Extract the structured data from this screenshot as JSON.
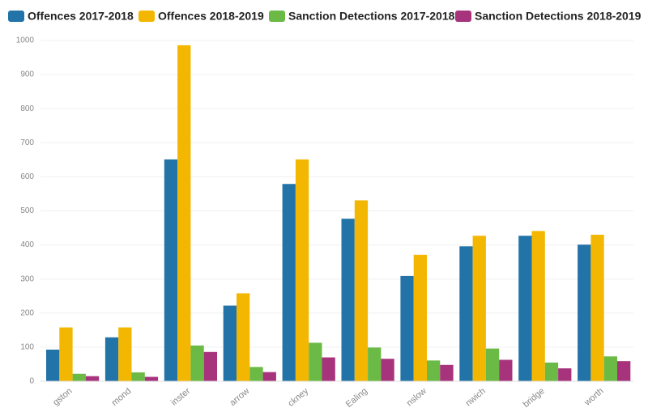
{
  "chart_data": {
    "type": "bar",
    "categories": [
      "gston",
      "mond",
      "inster",
      "arrow",
      "ckney",
      "Ealing",
      "nslow",
      "nwich",
      "bridge",
      "worth"
    ],
    "series": [
      {
        "name": "Offences 2017-2018",
        "color": "#2274a8",
        "values": [
          93,
          129,
          651,
          222,
          579,
          477,
          309,
          396,
          427,
          401
        ]
      },
      {
        "name": "Offences 2018-2019",
        "color": "#f4b701",
        "values": [
          158,
          158,
          986,
          258,
          651,
          531,
          371,
          427,
          441,
          430
        ]
      },
      {
        "name": "Sanction Detections 2017-2018",
        "color": "#6aba45",
        "values": [
          22,
          26,
          105,
          42,
          113,
          99,
          61,
          96,
          55,
          73
        ]
      },
      {
        "name": "Sanction Detections 2018-2019",
        "color": "#a6337b",
        "values": [
          15,
          13,
          86,
          27,
          70,
          66,
          48,
          63,
          38,
          59
        ]
      }
    ],
    "ylim": [
      0,
      1000
    ],
    "yticks": [
      0,
      100,
      200,
      300,
      400,
      500,
      600,
      700,
      800,
      900,
      1000
    ],
    "grid": true
  }
}
